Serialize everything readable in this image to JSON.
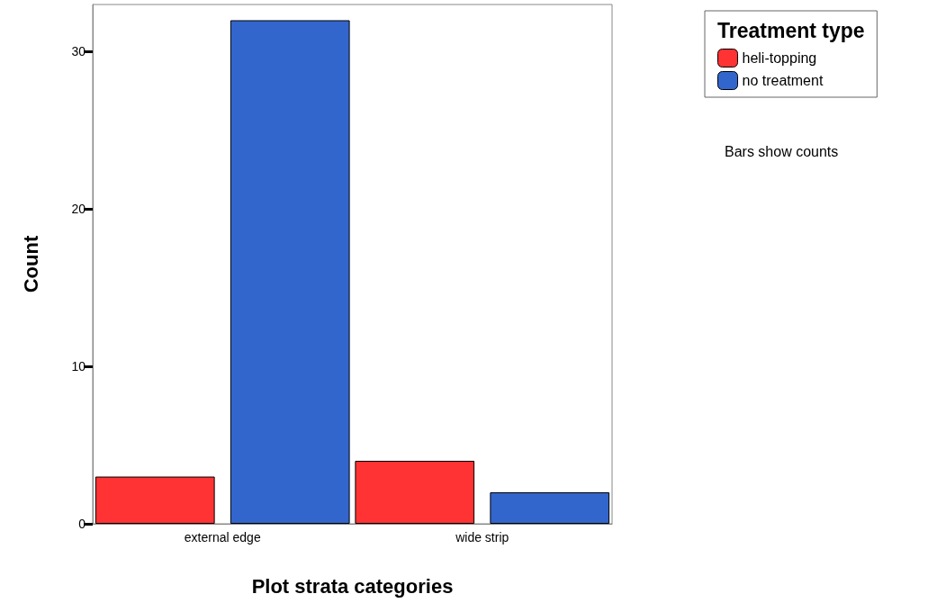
{
  "chart_data": {
    "type": "bar",
    "xlabel": "Plot strata categories",
    "ylabel": "Count",
    "legend_title": "Treatment type",
    "categories": [
      "external edge",
      "wide strip"
    ],
    "series": [
      {
        "name": "heli-topping",
        "color": "#ff3333",
        "values": [
          3,
          4
        ]
      },
      {
        "name": "no treatment",
        "color": "#3366cc",
        "values": [
          32,
          2
        ]
      }
    ],
    "ylim": [
      0,
      33
    ],
    "yticks": [
      0,
      10,
      20,
      30
    ],
    "grid": false,
    "legend": "top right",
    "annotations": [
      "Bars show counts"
    ]
  }
}
